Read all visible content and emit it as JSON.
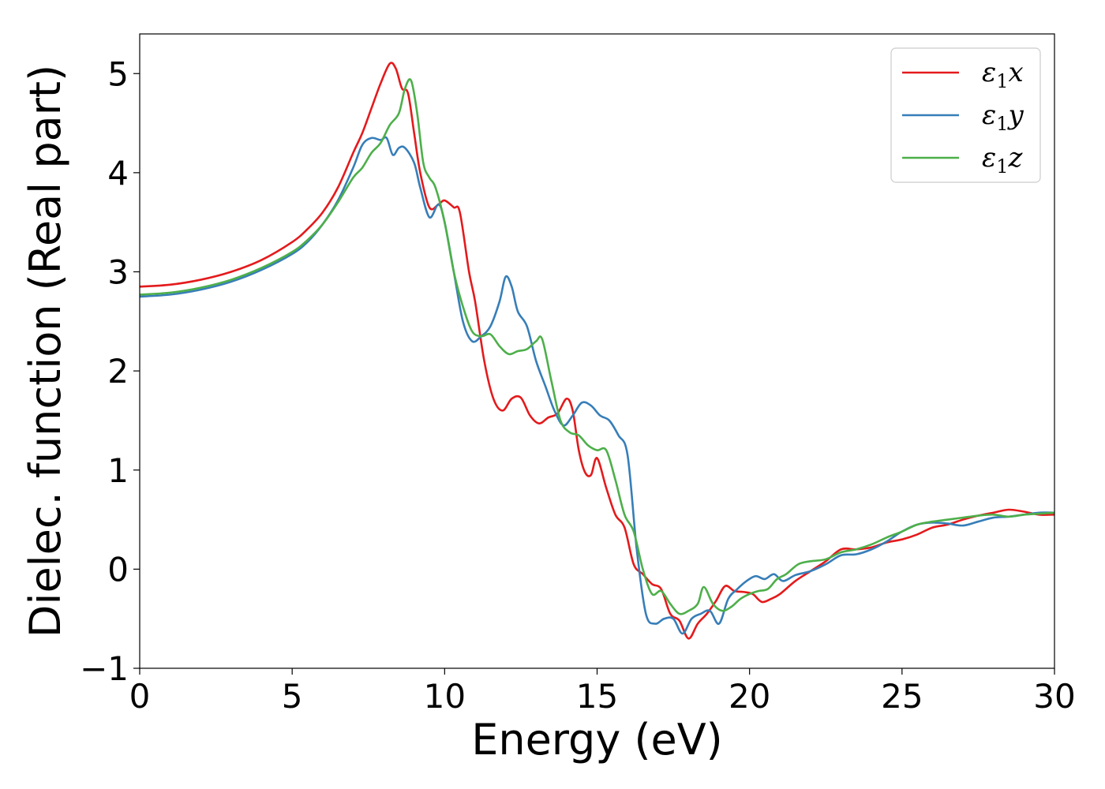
{
  "chart_data": {
    "type": "line",
    "title": "",
    "xlabel": "Energy (eV)",
    "ylabel": "Dielec. function (Real part)",
    "xlim": [
      0,
      30
    ],
    "ylim": [
      -1,
      5.4
    ],
    "xticks": [
      0,
      5,
      10,
      15,
      20,
      25,
      30
    ],
    "xtick_labels": [
      "0",
      "5",
      "10",
      "15",
      "20",
      "25",
      "30"
    ],
    "yticks": [
      -1,
      0,
      1,
      2,
      3,
      4,
      5
    ],
    "ytick_labels": [
      "−1",
      "0",
      "1",
      "2",
      "3",
      "4",
      "5"
    ],
    "grid": false,
    "legend_position": "top-right",
    "series": [
      {
        "name": "ε₁x",
        "legend_main": "ε",
        "legend_sub": "1",
        "legend_suffix": "x",
        "color": "#e41a1c",
        "x": [
          0,
          1,
          2,
          3,
          4,
          5,
          5.5,
          6,
          6.5,
          7,
          7.3,
          7.6,
          7.9,
          8.2,
          8.4,
          8.6,
          8.8,
          9.0,
          9.2,
          9.5,
          9.8,
          10.0,
          10.3,
          10.5,
          10.8,
          11.0,
          11.3,
          11.6,
          11.9,
          12.2,
          12.5,
          12.8,
          13.1,
          13.4,
          13.7,
          14.0,
          14.2,
          14.4,
          14.6,
          14.8,
          15.0,
          15.3,
          15.6,
          15.9,
          16.2,
          16.5,
          16.8,
          17.1,
          17.4,
          17.7,
          18.0,
          18.3,
          18.6,
          18.9,
          19.2,
          19.5,
          19.8,
          20.1,
          20.4,
          20.7,
          21.0,
          21.5,
          22.0,
          22.5,
          23.0,
          23.5,
          24.0,
          24.5,
          25.0,
          25.5,
          26.0,
          26.5,
          27.0,
          27.5,
          28.0,
          28.5,
          29.0,
          29.5,
          30.0
        ],
        "y": [
          2.85,
          2.87,
          2.92,
          3.0,
          3.12,
          3.3,
          3.43,
          3.6,
          3.85,
          4.2,
          4.4,
          4.65,
          4.9,
          5.1,
          5.05,
          4.85,
          4.8,
          4.4,
          4.0,
          3.65,
          3.68,
          3.72,
          3.65,
          3.6,
          3.0,
          2.7,
          2.1,
          1.72,
          1.6,
          1.72,
          1.73,
          1.55,
          1.47,
          1.53,
          1.57,
          1.72,
          1.6,
          1.2,
          0.98,
          0.95,
          1.12,
          0.82,
          0.55,
          0.42,
          0.05,
          -0.05,
          -0.15,
          -0.2,
          -0.45,
          -0.52,
          -0.7,
          -0.55,
          -0.45,
          -0.32,
          -0.17,
          -0.22,
          -0.23,
          -0.25,
          -0.33,
          -0.3,
          -0.25,
          -0.12,
          -0.02,
          0.08,
          0.2,
          0.2,
          0.22,
          0.27,
          0.3,
          0.35,
          0.42,
          0.45,
          0.5,
          0.54,
          0.57,
          0.6,
          0.58,
          0.55,
          0.55
        ]
      },
      {
        "name": "ε₁y",
        "legend_main": "ε",
        "legend_sub": "1",
        "legend_suffix": "y",
        "color": "#377eb8",
        "x": [
          0,
          1,
          2,
          3,
          4,
          5,
          5.5,
          6,
          6.5,
          7,
          7.3,
          7.6,
          7.9,
          8.1,
          8.3,
          8.5,
          8.7,
          9.0,
          9.2,
          9.5,
          9.8,
          10.0,
          10.3,
          10.6,
          10.9,
          11.2,
          11.5,
          11.8,
          12.0,
          12.2,
          12.4,
          12.7,
          13.0,
          13.3,
          13.6,
          13.9,
          14.2,
          14.5,
          14.8,
          15.1,
          15.4,
          15.7,
          16.0,
          16.3,
          16.6,
          16.9,
          17.2,
          17.5,
          17.8,
          18.1,
          18.4,
          18.7,
          19.0,
          19.3,
          19.6,
          19.9,
          20.2,
          20.5,
          20.8,
          21.1,
          21.5,
          22.0,
          22.5,
          23.0,
          23.5,
          24.0,
          24.5,
          25.0,
          25.5,
          26.0,
          26.5,
          27.0,
          27.5,
          28.0,
          28.5,
          29.0,
          29.5,
          30.0
        ],
        "y": [
          2.75,
          2.77,
          2.82,
          2.9,
          3.02,
          3.18,
          3.3,
          3.48,
          3.72,
          4.05,
          4.28,
          4.35,
          4.33,
          4.35,
          4.18,
          4.25,
          4.25,
          4.1,
          3.85,
          3.55,
          3.68,
          3.5,
          3.0,
          2.5,
          2.3,
          2.35,
          2.45,
          2.7,
          2.95,
          2.85,
          2.6,
          2.45,
          2.1,
          1.85,
          1.6,
          1.45,
          1.55,
          1.68,
          1.65,
          1.55,
          1.5,
          1.35,
          1.15,
          0.2,
          -0.45,
          -0.55,
          -0.5,
          -0.5,
          -0.65,
          -0.5,
          -0.45,
          -0.42,
          -0.55,
          -0.3,
          -0.2,
          -0.12,
          -0.07,
          -0.1,
          -0.05,
          -0.12,
          -0.06,
          -0.02,
          0.05,
          0.14,
          0.15,
          0.2,
          0.28,
          0.38,
          0.45,
          0.47,
          0.46,
          0.44,
          0.48,
          0.52,
          0.53,
          0.55,
          0.57,
          0.57
        ]
      },
      {
        "name": "ε₁z",
        "legend_main": "ε",
        "legend_sub": "1",
        "legend_suffix": "z",
        "color": "#4daf4a",
        "x": [
          0,
          1,
          2,
          3,
          4,
          5,
          5.5,
          6,
          6.5,
          7,
          7.3,
          7.6,
          7.9,
          8.2,
          8.5,
          8.7,
          8.9,
          9.1,
          9.3,
          9.5,
          9.7,
          10.0,
          10.3,
          10.6,
          10.9,
          11.2,
          11.5,
          11.8,
          12.1,
          12.4,
          12.7,
          13.0,
          13.2,
          13.5,
          13.8,
          14.1,
          14.4,
          14.7,
          15.0,
          15.3,
          15.6,
          15.9,
          16.2,
          16.5,
          16.8,
          17.1,
          17.4,
          17.7,
          18.0,
          18.3,
          18.5,
          18.8,
          19.1,
          19.4,
          19.7,
          20.0,
          20.3,
          20.6,
          20.9,
          21.2,
          21.6,
          22.0,
          22.5,
          23.0,
          23.5,
          24.0,
          24.5,
          25.0,
          25.5,
          26.0,
          26.5,
          27.0,
          27.5,
          28.0,
          28.5,
          29.0,
          29.5,
          30.0
        ],
        "y": [
          2.77,
          2.79,
          2.84,
          2.92,
          3.04,
          3.2,
          3.32,
          3.48,
          3.7,
          3.95,
          4.05,
          4.2,
          4.3,
          4.48,
          4.6,
          4.85,
          4.93,
          4.6,
          4.1,
          3.95,
          3.85,
          3.5,
          3.0,
          2.65,
          2.4,
          2.35,
          2.37,
          2.25,
          2.17,
          2.2,
          2.22,
          2.3,
          2.32,
          1.9,
          1.5,
          1.38,
          1.35,
          1.25,
          1.2,
          1.2,
          0.9,
          0.55,
          0.38,
          0.0,
          -0.25,
          -0.22,
          -0.35,
          -0.45,
          -0.42,
          -0.35,
          -0.18,
          -0.35,
          -0.42,
          -0.38,
          -0.3,
          -0.25,
          -0.22,
          -0.2,
          -0.1,
          -0.05,
          0.05,
          0.08,
          0.1,
          0.17,
          0.2,
          0.25,
          0.32,
          0.38,
          0.45,
          0.48,
          0.5,
          0.52,
          0.54,
          0.55,
          0.53,
          0.55,
          0.56,
          0.57
        ]
      }
    ]
  }
}
